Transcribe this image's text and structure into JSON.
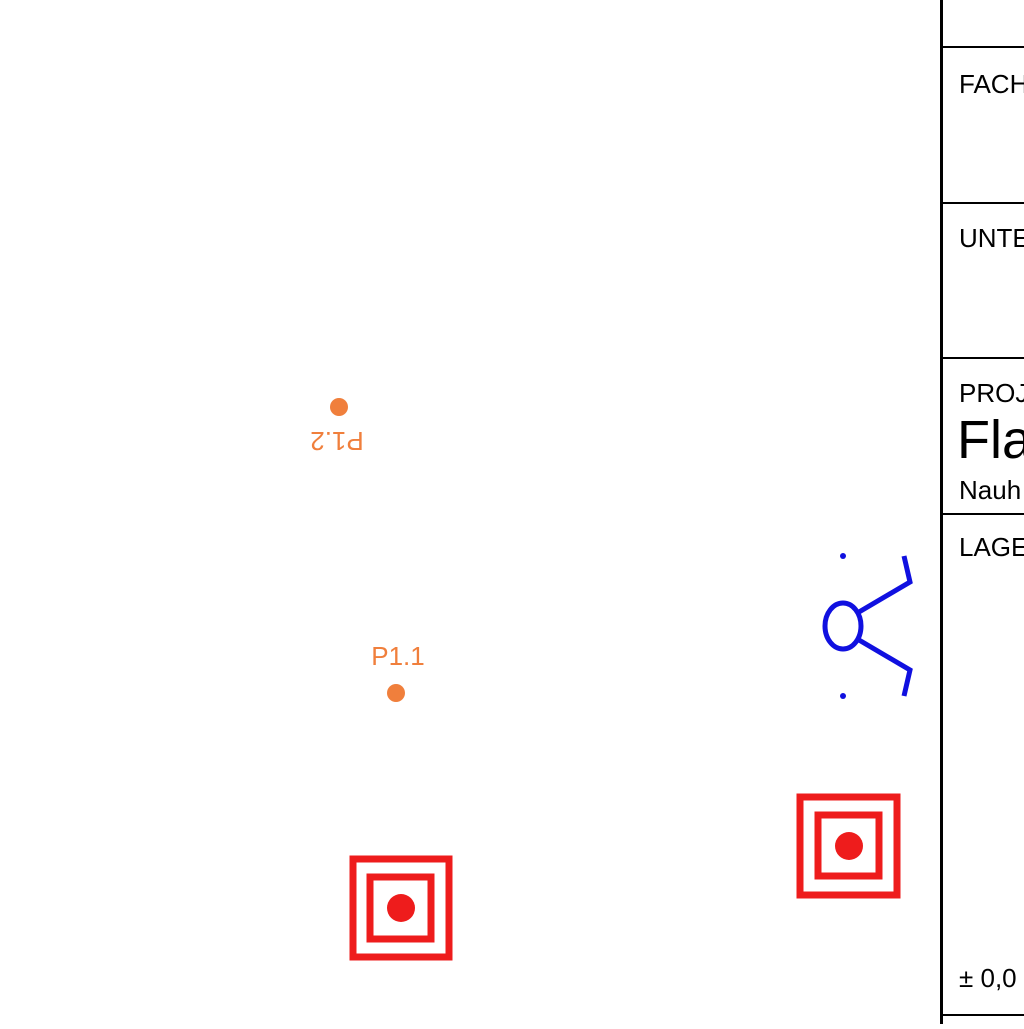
{
  "drawing": {
    "points": [
      {
        "label": "P1.2"
      },
      {
        "label": "P1.1"
      }
    ],
    "colors": {
      "survey_point": "#f07f3c",
      "target_marker": "#ee1c1c",
      "symbol": "#1010e0"
    },
    "icons": [
      "survey-point-icon",
      "target-marker-icon",
      "drain-symbol-icon"
    ]
  },
  "title_block": {
    "fach_label": "FACH",
    "unte_label": "UNTE",
    "proj_label": "PROJ",
    "project_name": "Fla",
    "project_sub": "Nauh",
    "lage_label": "LAGE",
    "elevation": "± 0,0"
  }
}
